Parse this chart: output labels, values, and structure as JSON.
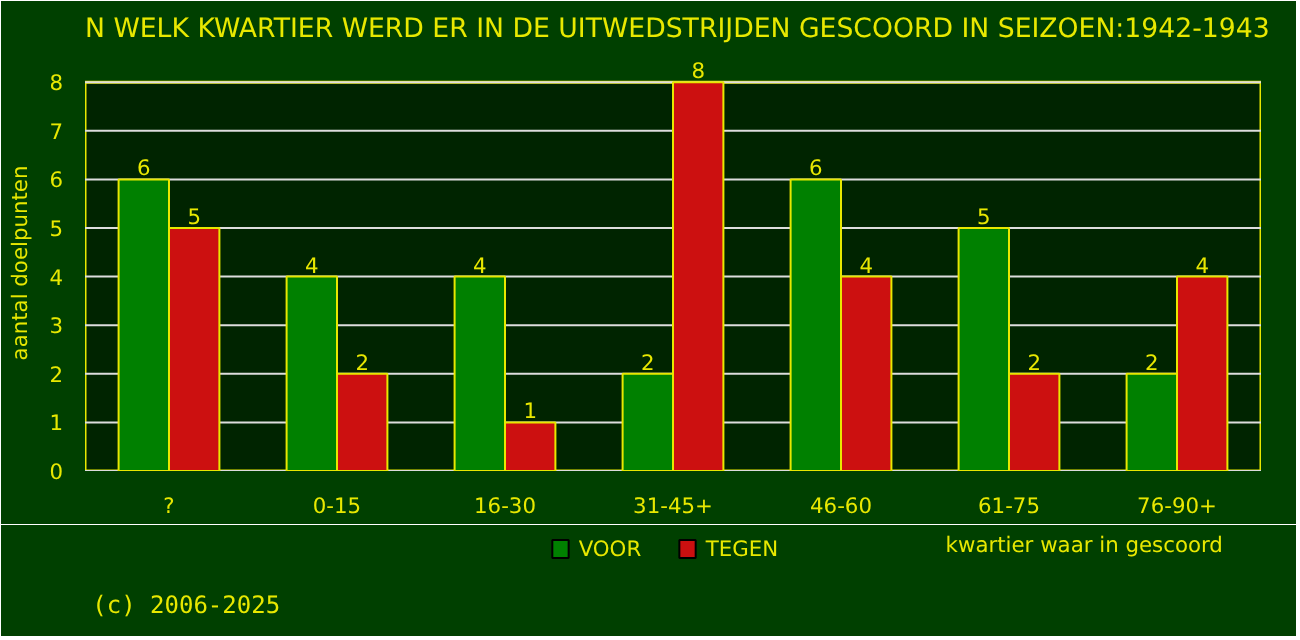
{
  "chart_data": {
    "type": "bar",
    "title": "N WELK KWARTIER WERD ER IN DE UITWEDSTRIJDEN GESCOORD IN SEIZOEN:1942-1943",
    "xlabel": "kwartier waar in gescoord",
    "ylabel": "aantal doelpunten",
    "annotations": [
      "(c) 2006-2025"
    ],
    "categories": [
      "?",
      "0-15",
      "16-30",
      "31-45+",
      "46-60",
      "61-75",
      "76-90+"
    ],
    "series": [
      {
        "name": "VOOR",
        "color": "#008000",
        "values": [
          6,
          4,
          4,
          2,
          6,
          5,
          2
        ]
      },
      {
        "name": "TEGEN",
        "color": "#cc1010",
        "values": [
          5,
          2,
          1,
          8,
          4,
          2,
          4
        ]
      }
    ],
    "ylim": [
      0,
      8
    ],
    "yticks": [
      0,
      1,
      2,
      3,
      4,
      5,
      6,
      7,
      8
    ],
    "grid": "y",
    "legend": "bottom",
    "data_labels": true
  }
}
